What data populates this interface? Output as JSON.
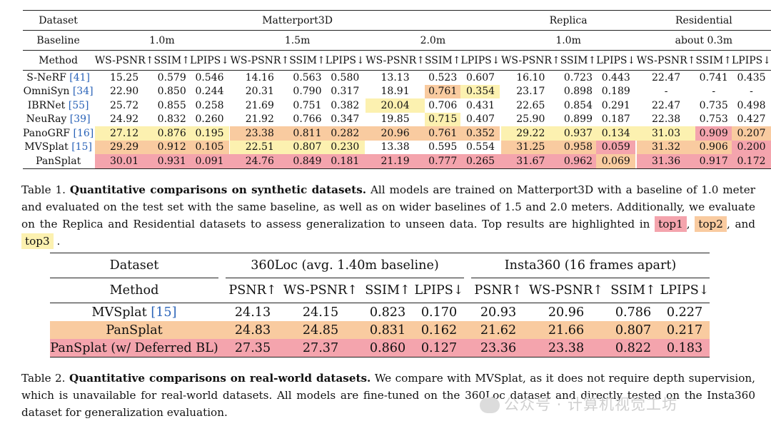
{
  "table1": {
    "h_dataset": "Dataset",
    "h_baseline": "Baseline",
    "h_method": "Method",
    "groups": [
      {
        "name": "Matterport3D",
        "baselines": [
          "1.0m",
          "1.5m",
          "2.0m"
        ]
      },
      {
        "name": "Replica",
        "baselines": [
          "1.0m"
        ]
      },
      {
        "name": "Residential",
        "baselines": [
          "about 0.3m"
        ]
      }
    ],
    "metrics": [
      "WS-PSNR↑",
      "SSIM↑",
      "LPIPS↓"
    ],
    "rows": [
      {
        "name": "S-NeRF",
        "cite": "[41]",
        "v": [
          "15.25",
          "0.579",
          "0.546",
          "14.16",
          "0.563",
          "0.580",
          "13.13",
          "0.523",
          "0.607",
          "16.10",
          "0.723",
          "0.443",
          "22.47",
          "0.741",
          "0.435"
        ],
        "h": [
          0,
          0,
          0,
          0,
          0,
          0,
          0,
          0,
          0,
          0,
          0,
          0,
          0,
          0,
          0
        ]
      },
      {
        "name": "OmniSyn",
        "cite": "[34]",
        "v": [
          "22.90",
          "0.850",
          "0.244",
          "20.31",
          "0.790",
          "0.317",
          "18.91",
          "0.761",
          "0.354",
          "23.17",
          "0.898",
          "0.189",
          "-",
          "-",
          "-"
        ],
        "h": [
          0,
          0,
          0,
          0,
          0,
          0,
          0,
          2,
          3,
          0,
          0,
          0,
          0,
          0,
          0
        ]
      },
      {
        "name": "IBRNet",
        "cite": "[55]",
        "v": [
          "25.72",
          "0.855",
          "0.258",
          "21.69",
          "0.751",
          "0.382",
          "20.04",
          "0.706",
          "0.431",
          "22.65",
          "0.854",
          "0.291",
          "22.47",
          "0.735",
          "0.498"
        ],
        "h": [
          0,
          0,
          0,
          0,
          0,
          0,
          3,
          0,
          0,
          0,
          0,
          0,
          0,
          0,
          0
        ]
      },
      {
        "name": "NeuRay",
        "cite": "[39]",
        "v": [
          "24.92",
          "0.832",
          "0.260",
          "21.92",
          "0.766",
          "0.347",
          "19.85",
          "0.715",
          "0.407",
          "25.90",
          "0.899",
          "0.187",
          "22.38",
          "0.753",
          "0.427"
        ],
        "h": [
          0,
          0,
          0,
          0,
          0,
          0,
          0,
          3,
          0,
          0,
          0,
          0,
          0,
          0,
          0
        ]
      },
      {
        "name": "PanoGRF",
        "cite": "[16]",
        "v": [
          "27.12",
          "0.876",
          "0.195",
          "23.38",
          "0.811",
          "0.282",
          "20.96",
          "0.761",
          "0.352",
          "29.22",
          "0.937",
          "0.134",
          "31.03",
          "0.909",
          "0.207"
        ],
        "h": [
          3,
          3,
          3,
          2,
          2,
          2,
          2,
          2,
          2,
          3,
          3,
          3,
          3,
          1,
          2
        ]
      },
      {
        "name": "MVSplat",
        "cite": "[15]",
        "v": [
          "29.29",
          "0.912",
          "0.105",
          "22.51",
          "0.807",
          "0.230",
          "13.38",
          "0.595",
          "0.554",
          "31.25",
          "0.958",
          "0.059",
          "31.32",
          "0.906",
          "0.200"
        ],
        "h": [
          2,
          2,
          2,
          3,
          3,
          3,
          0,
          0,
          0,
          2,
          2,
          1,
          2,
          2,
          1
        ]
      },
      {
        "name": "PanSplat",
        "cite": "",
        "v": [
          "30.01",
          "0.931",
          "0.091",
          "24.76",
          "0.849",
          "0.181",
          "21.19",
          "0.777",
          "0.265",
          "31.67",
          "0.962",
          "0.069",
          "31.36",
          "0.917",
          "0.172"
        ],
        "h": [
          1,
          1,
          1,
          1,
          1,
          1,
          1,
          1,
          1,
          1,
          1,
          2,
          1,
          1,
          1
        ]
      }
    ]
  },
  "caption1": {
    "label": "Table 1.",
    "title": "Quantitative comparisons on synthetic datasets.",
    "text": "All models are trained on Matterport3D with a baseline of 1.0 meter and evaluated on the test set with the same baseline, as well as on wider baselines of 1.5 and 2.0 meters. Additionally, we evaluate on the Replica and Residential datasets to assess generalization to unseen data. Top results are highlighted in",
    "top1": "top1",
    "top2": "top2",
    "and_word": ", and",
    "top3": "top3",
    "end": "."
  },
  "table2": {
    "h_dataset": "Dataset",
    "h_method": "Method",
    "groups": [
      "360Loc (avg. 1.40m baseline)",
      "Insta360 (16 frames apart)"
    ],
    "metrics": [
      "PSNR↑",
      "WS-PSNR↑",
      "SSIM↑",
      "LPIPS↓"
    ],
    "rows": [
      {
        "name": "MVSplat",
        "cite": "[15]",
        "v": [
          "24.13",
          "24.15",
          "0.823",
          "0.170",
          "20.93",
          "20.96",
          "0.786",
          "0.227"
        ],
        "h": [
          0,
          0,
          0,
          0,
          0,
          0,
          0,
          0
        ]
      },
      {
        "name": "PanSplat",
        "cite": "",
        "v": [
          "24.83",
          "24.85",
          "0.831",
          "0.162",
          "21.62",
          "21.66",
          "0.807",
          "0.217"
        ],
        "h": [
          2,
          2,
          2,
          2,
          2,
          2,
          2,
          2
        ]
      },
      {
        "name": "PanSplat (w/ Deferred BL)",
        "cite": "",
        "v": [
          "27.35",
          "27.37",
          "0.860",
          "0.127",
          "23.36",
          "23.38",
          "0.822",
          "0.183"
        ],
        "h": [
          1,
          1,
          1,
          1,
          1,
          1,
          1,
          1
        ]
      }
    ]
  },
  "caption2": {
    "label": "Table 2.",
    "title": "Quantitative comparisons on real-world datasets.",
    "text": "We compare with MVSplat, as it does not require depth supervision, which is unavailable for real-world datasets. All models are fine-tuned on the 360Loc dataset and directly tested on the Insta360 dataset for generalization evaluation."
  },
  "watermark": "公众号 · 计算机视觉工坊",
  "colors": {
    "top1": "#f4a4ad",
    "top2": "#f9cba0",
    "top3": "#fcf1b0",
    "cite": "#2a63b8"
  }
}
